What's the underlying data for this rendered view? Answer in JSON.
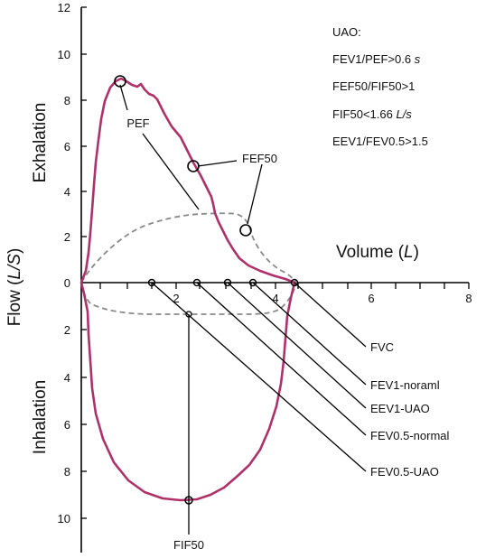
{
  "axes": {
    "y_title": [
      "Flow (",
      "L/S",
      ")"
    ],
    "x_title": [
      "Volume (",
      "L",
      ")"
    ],
    "upper_region_label": "Exhalation",
    "lower_region_label": "Inhalation",
    "y_ticks_exhalation": [
      "12",
      "10",
      "8",
      "6",
      "4",
      "2",
      "0"
    ],
    "y_ticks_inhalation": [
      "2",
      "4",
      "6",
      "8",
      "10"
    ],
    "x_ticks": [
      "2",
      "4",
      "6",
      "8"
    ]
  },
  "criteria": {
    "heading": "UAO:",
    "lines": [
      {
        "text": "FEV1/PEF>0.6 ",
        "unit": "s"
      },
      {
        "text": "FEF50/FIF50>1",
        "unit": ""
      },
      {
        "text": "FIF50<1.66 ",
        "unit": "L/s"
      },
      {
        "text": "EEV1/FEV0.5>1.5",
        "unit": ""
      }
    ]
  },
  "callouts": {
    "pef": "PEF",
    "fef50": "FEF50",
    "fif50": "FIF50",
    "fvc": "FVC",
    "fev1_normal": "FEV1-noraml",
    "fev1_uao": "EEV1-UAO",
    "fev05_normal": "FEV0.5-normal",
    "fev05_uao": "FEV0.5-UAO"
  },
  "colors": {
    "uao_curve": "#b0306a",
    "normal_curve": "#8a8a8a",
    "axis": "#000000"
  }
}
